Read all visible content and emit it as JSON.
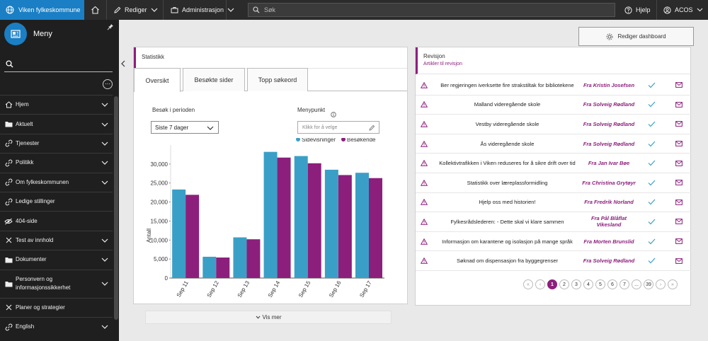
{
  "topbar": {
    "brand": "Viken fylkeskommune",
    "menus": [
      {
        "label": "Rediger"
      },
      {
        "label": "Administrasjon"
      }
    ],
    "search_placeholder": "Søk",
    "help": "Hjelp",
    "user": "ACOS"
  },
  "sidebar": {
    "title": "Meny",
    "items": [
      {
        "label": "Hjem",
        "icon": "home-icon",
        "chevron": true
      },
      {
        "label": "Aktuelt",
        "icon": "folder-icon",
        "chevron": true
      },
      {
        "label": "Tjenester",
        "icon": "link-icon",
        "chevron": true
      },
      {
        "label": "Politikk",
        "icon": "link-icon",
        "chevron": true
      },
      {
        "label": "Om fylkeskommunen",
        "icon": "link-icon",
        "chevron": true
      },
      {
        "label": "Ledige stillinger",
        "icon": "link-icon",
        "chevron": false
      },
      {
        "label": "404-side",
        "icon": "hidden-eye-icon",
        "chevron": false
      },
      {
        "label": "Test av innhold",
        "icon": "close-icon",
        "chevron": true
      },
      {
        "label": "Dokumenter",
        "icon": "folder-icon",
        "chevron": true
      },
      {
        "label": "Personvern og informasjonssikkerhet",
        "icon": "folder-icon",
        "chevron": true
      },
      {
        "label": "Planer og strategier",
        "icon": "close-icon",
        "chevron": false
      },
      {
        "label": "English",
        "icon": "link-icon",
        "chevron": true
      }
    ]
  },
  "dashboard": {
    "edit_button": "Rediger dashboard"
  },
  "stats": {
    "title": "Statistikk",
    "tabs": [
      {
        "label": "Oversikt",
        "active": true
      },
      {
        "label": "Besøkte sider",
        "active": false
      },
      {
        "label": "Topp søkeord",
        "active": false
      }
    ],
    "period_label": "Besøk i perioden",
    "period_value": "Siste 7 dager",
    "menupunkt_label": "Menypunkt",
    "menupunkt_placeholder": "Klikk for å velge",
    "show_more": "Vis mer"
  },
  "chart_data": {
    "type": "bar",
    "categories": [
      "Sep 11",
      "Sep 12",
      "Sep 13",
      "Sep 14",
      "Sep 15",
      "Sep 16",
      "Sep 17"
    ],
    "series": [
      {
        "name": "Sidevisninger",
        "color": "#3a9fc6",
        "values": [
          23300,
          5600,
          10700,
          33200,
          32100,
          28500,
          27700
        ]
      },
      {
        "name": "Besøkende",
        "color": "#8c1f7c",
        "values": [
          21900,
          5400,
          10200,
          31700,
          30200,
          27100,
          26300
        ]
      }
    ],
    "ylabel": "Antall",
    "ylim": [
      0,
      35000
    ],
    "yticks": [
      0,
      5000,
      10000,
      15000,
      20000,
      25000,
      30000
    ],
    "ytick_labels": [
      "0",
      "5,000",
      "10,000",
      "15,000",
      "20,000",
      "25,000",
      "30,000"
    ],
    "legend_position": "top-right",
    "grid": false
  },
  "revisjon": {
    "title": "Revisjon",
    "subtitle": "Artikler til revisjon",
    "rows": [
      {
        "title": "Ber regjeringen iverksette fire strakstiltak for bibliotekene",
        "author": "Fra Kristin Josefsen"
      },
      {
        "title": "Malland videregående skole",
        "author": "Fra Solveig Rødland"
      },
      {
        "title": "Vestby videregående skole",
        "author": "Fra Solveig Rødland"
      },
      {
        "title": "Ås videregående skole",
        "author": "Fra Solveig Rødland"
      },
      {
        "title": "Kollektivtrafikken i Viken reduseres for å sikre drift over tid",
        "author": "Fra Jan Ivar Bøe"
      },
      {
        "title": "Statistikk over læreplassformidling",
        "author": "Fra Christina Grytøyr"
      },
      {
        "title": "Hjelp oss med historien!",
        "author": "Fra Fredrik Norland"
      },
      {
        "title": "Fylkesrådslederen: - Dette skal vi klare sammen",
        "author": "Fra Pål Blåflat Vikesland"
      },
      {
        "title": "Informasjon om karantene og isolasjon på mange språk",
        "author": "Fra Morten Brunslid"
      },
      {
        "title": "Søknad om dispensasjon fra byggegrenser",
        "author": "Fra Solveig Rødland"
      }
    ],
    "pagination": {
      "first": "«",
      "prev": "‹",
      "pages": [
        "1",
        "2",
        "3",
        "4",
        "5",
        "6",
        "7",
        "...",
        "39"
      ],
      "current": "1",
      "next": "›",
      "last": "»"
    }
  },
  "colors": {
    "accent": "#8c1f7c",
    "brand_blue": "#1a7fc4",
    "bar_blue": "#3a9fc6",
    "check": "#3a9fc6"
  }
}
